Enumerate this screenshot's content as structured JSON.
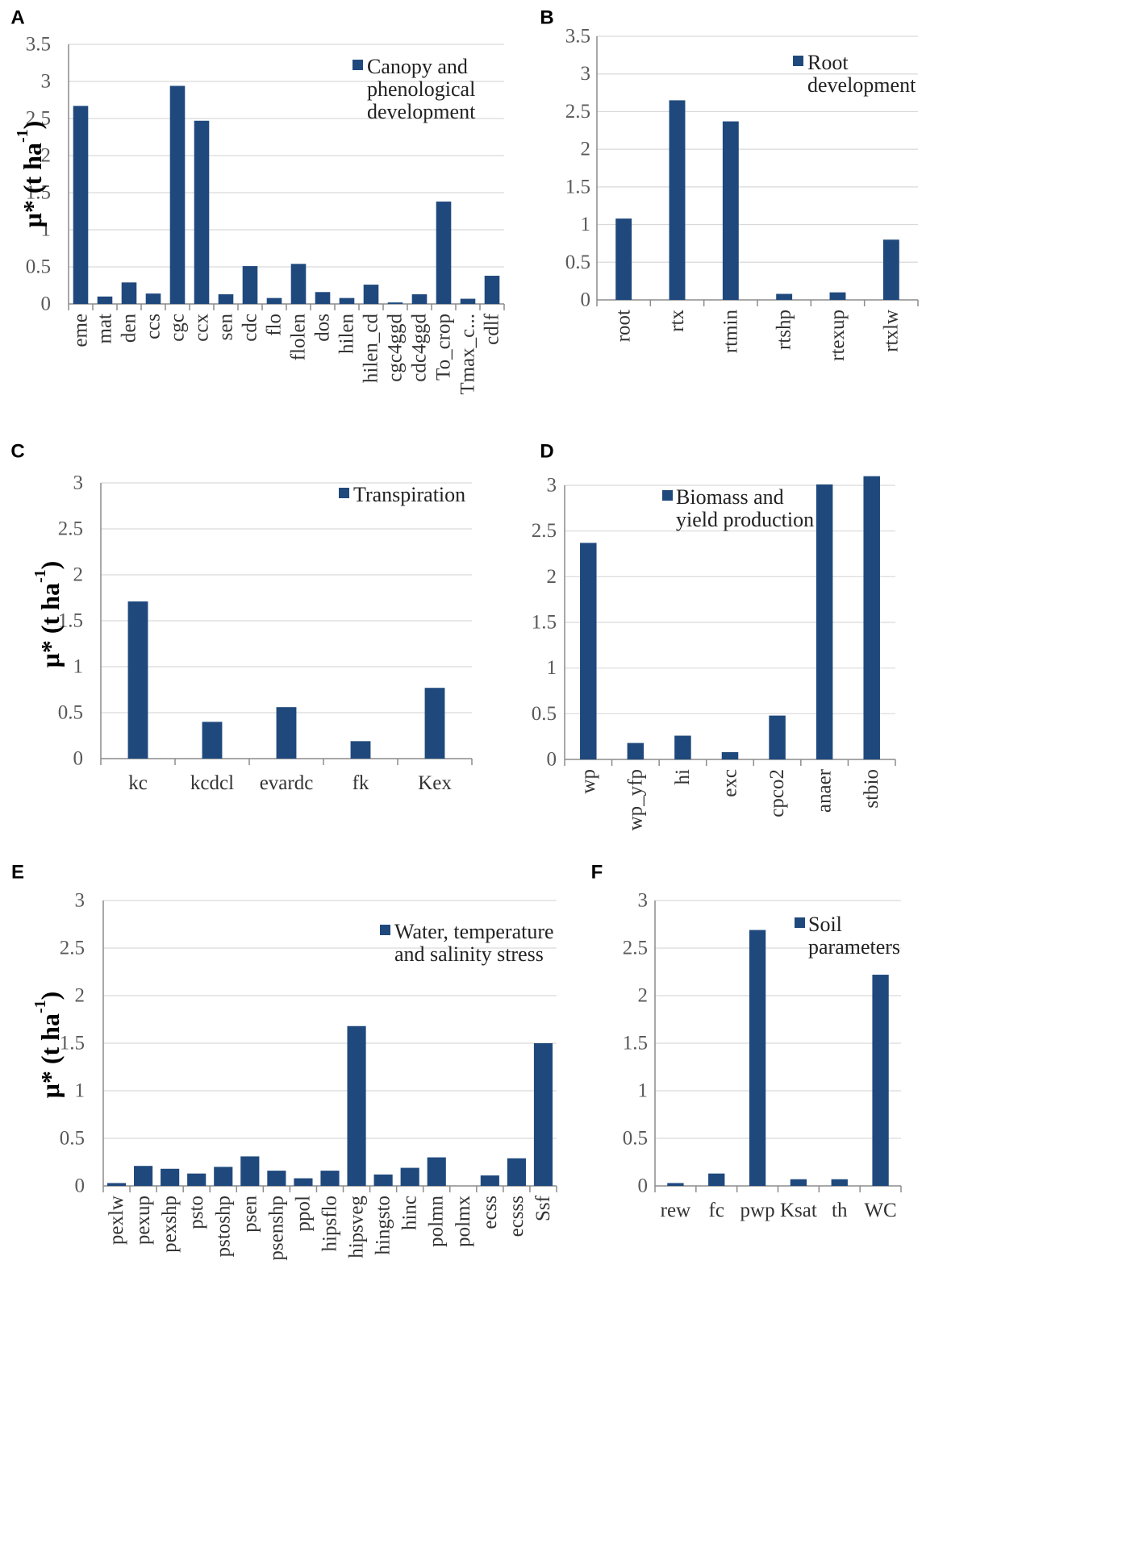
{
  "colors": {
    "bar": "#1f497d"
  },
  "chart_data": [
    {
      "id": "A",
      "panel_label": "A",
      "type": "bar",
      "ylabel": "μ* (t ha",
      "ylabel_sup": "-1",
      "ylabel_close": ")",
      "ylim": [
        0,
        3.5
      ],
      "yticks": [
        "0",
        "0.5",
        "1",
        "1.5",
        "2",
        "2.5",
        "3",
        "3.5"
      ],
      "legend": [
        "Canopy and",
        "phenological",
        "development"
      ],
      "categories": [
        "eme",
        "mat",
        "den",
        "ccs",
        "cgc",
        "ccx",
        "sen",
        "cdc",
        "flo",
        "flolen",
        "dos",
        "hilen",
        "hilen_cd",
        "cgc4ggd",
        "cdc4ggd",
        "To_crop",
        "Tmax_c...",
        "cdlf"
      ],
      "values": [
        2.67,
        0.1,
        0.29,
        0.14,
        2.94,
        2.47,
        0.13,
        0.51,
        0.08,
        0.54,
        0.16,
        0.08,
        0.26,
        0.02,
        0.13,
        1.38,
        0.07,
        0.38
      ]
    },
    {
      "id": "B",
      "panel_label": "B",
      "type": "bar",
      "ylim": [
        0,
        3.5
      ],
      "yticks": [
        "0",
        "0.5",
        "1",
        "1.5",
        "2",
        "2.5",
        "3",
        "3.5"
      ],
      "legend": [
        "Root",
        "development"
      ],
      "categories": [
        "root",
        "rtx",
        "rtmin",
        "rtshp",
        "rtexup",
        "rtxlw"
      ],
      "values": [
        1.08,
        2.65,
        2.37,
        0.08,
        0.1,
        0.8
      ]
    },
    {
      "id": "C",
      "panel_label": "C",
      "type": "bar",
      "ylabel": "μ* (t ha",
      "ylabel_sup": "-1",
      "ylabel_close": ")",
      "ylim": [
        0,
        3
      ],
      "yticks": [
        "0",
        "0.5",
        "1",
        "1.5",
        "2",
        "2.5",
        "3"
      ],
      "legend": [
        "Transpiration"
      ],
      "categories": [
        "kc",
        "kcdcl",
        "evardc",
        "fk",
        "Kex"
      ],
      "values": [
        1.71,
        0.4,
        0.56,
        0.19,
        0.77
      ]
    },
    {
      "id": "D",
      "panel_label": "D",
      "type": "bar",
      "ylim": [
        0,
        3
      ],
      "yticks": [
        "0",
        "0.5",
        "1",
        "1.5",
        "2",
        "2.5",
        "3"
      ],
      "legend": [
        "Biomass and",
        "yield production"
      ],
      "categories": [
        "wp",
        "wp_yfp",
        "hi",
        "exc",
        "cpco2",
        "anaer",
        "stbio"
      ],
      "values": [
        2.37,
        0.18,
        0.26,
        0.08,
        0.48,
        3.01,
        3.1
      ]
    },
    {
      "id": "E",
      "panel_label": "E",
      "type": "bar",
      "ylabel": "μ* (t ha",
      "ylabel_sup": "-1",
      "ylabel_close": ")",
      "ylim": [
        0,
        3
      ],
      "yticks": [
        "0",
        "0.5",
        "1",
        "1.5",
        "2",
        "2.5",
        "3"
      ],
      "legend": [
        "Water, temperature",
        "and salinity stress"
      ],
      "categories": [
        "pexlw",
        "pexup",
        "pexshp",
        "psto",
        "pstoshp",
        "psen",
        "psenshp",
        "ppol",
        "hipsflo",
        "hipsveg",
        "hingsto",
        "hinc",
        "polmn",
        "polmx",
        "ecss",
        "ecsss",
        "Ssf"
      ],
      "values": [
        0.03,
        0.21,
        0.18,
        0.13,
        0.2,
        0.31,
        0.16,
        0.08,
        0.16,
        1.68,
        0.12,
        0.19,
        0.3,
        0.0,
        0.11,
        0.29,
        1.5
      ]
    },
    {
      "id": "F",
      "panel_label": "F",
      "type": "bar",
      "ylim": [
        0,
        3
      ],
      "yticks": [
        "0",
        "0.5",
        "1",
        "1.5",
        "2",
        "2.5",
        "3"
      ],
      "legend": [
        "Soil",
        "parameters"
      ],
      "categories": [
        "rew",
        "fc",
        "pwp",
        "Ksat",
        "th",
        "WC"
      ],
      "values": [
        0.03,
        0.13,
        2.69,
        0.07,
        0.07,
        2.22
      ]
    }
  ]
}
